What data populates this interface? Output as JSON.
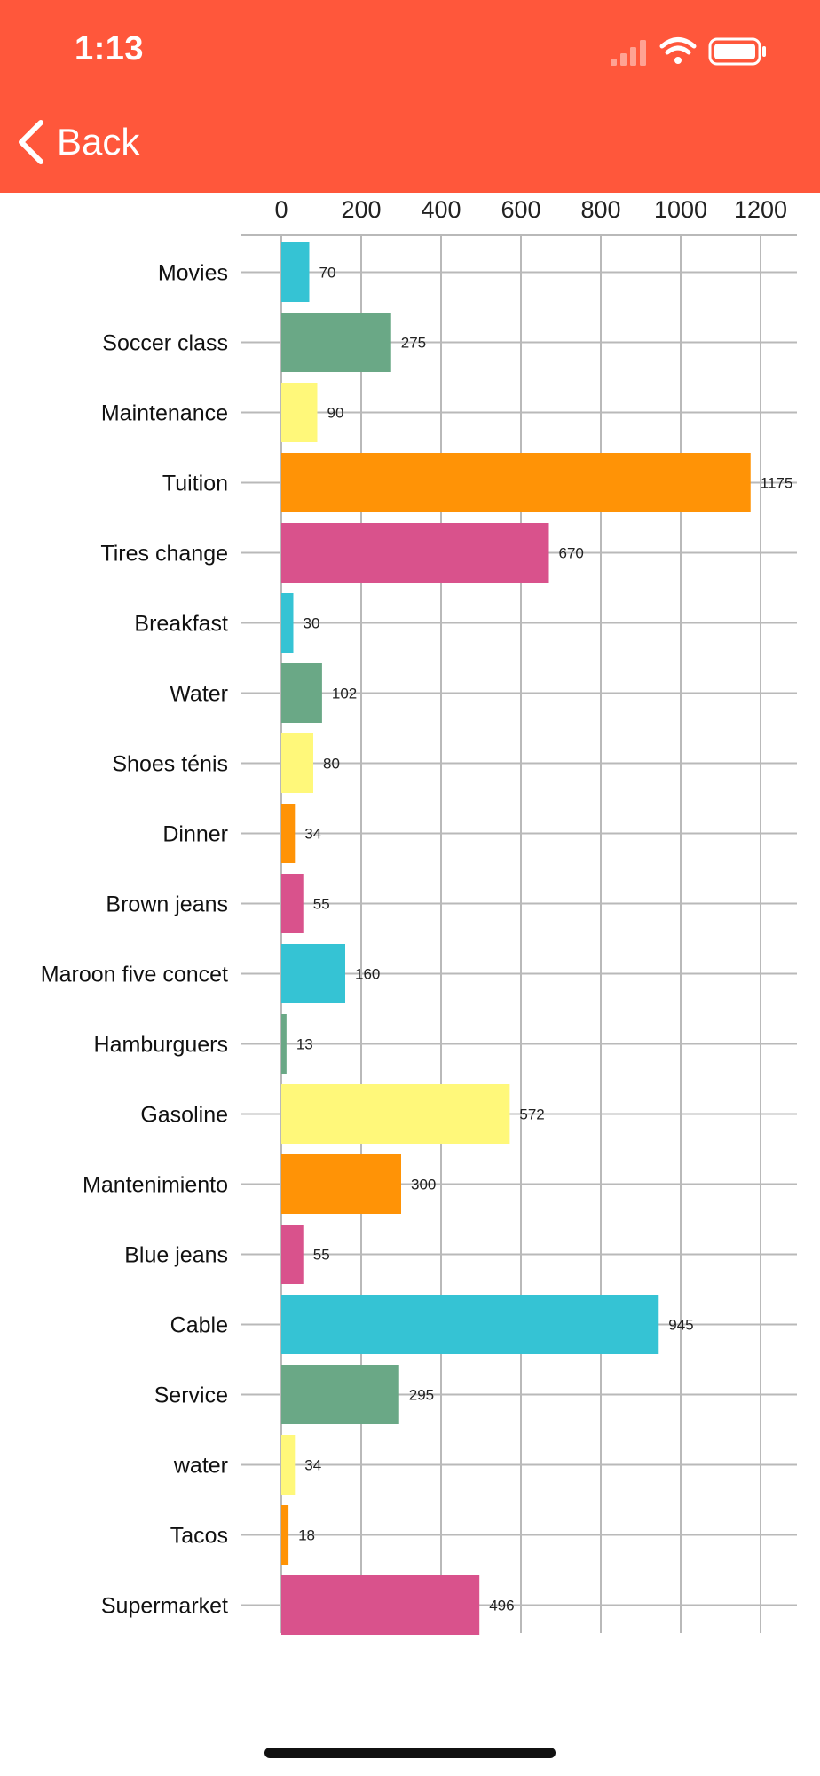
{
  "status_bar": {
    "time": "1:13",
    "icons": [
      "signal-icon",
      "wifi-icon",
      "battery-icon"
    ]
  },
  "nav": {
    "back_label": "Back",
    "back_icon": "chevron-left-icon"
  },
  "colors": {
    "header": "#ff573b",
    "palette": [
      "#35c3d4",
      "#6aa886",
      "#fff87a",
      "#ff9306",
      "#d9528c"
    ]
  },
  "chart_data": {
    "type": "bar",
    "orientation": "horizontal",
    "categories": [
      "Movies",
      "Soccer class",
      "Maintenance",
      "Tuition",
      "Tires change",
      "Breakfast",
      "Water",
      "Shoes ténis",
      "Dinner",
      "Brown jeans",
      "Maroon five concet",
      "Hamburguers",
      "Gasoline",
      "Mantenimiento",
      "Blue jeans",
      "Cable",
      "Service",
      "water",
      "Tacos",
      "Supermarket"
    ],
    "values": [
      70,
      275,
      90,
      1175,
      670,
      30,
      102,
      80,
      34,
      55,
      160,
      13,
      572,
      300,
      55,
      945,
      295,
      34,
      18,
      496
    ],
    "xlim": [
      0,
      1300
    ],
    "xticks": [
      0,
      200,
      400,
      600,
      800,
      1000,
      1200
    ],
    "tick_position": "top",
    "grid": true,
    "data_labels": true,
    "title": "",
    "xlabel": "",
    "ylabel": ""
  }
}
